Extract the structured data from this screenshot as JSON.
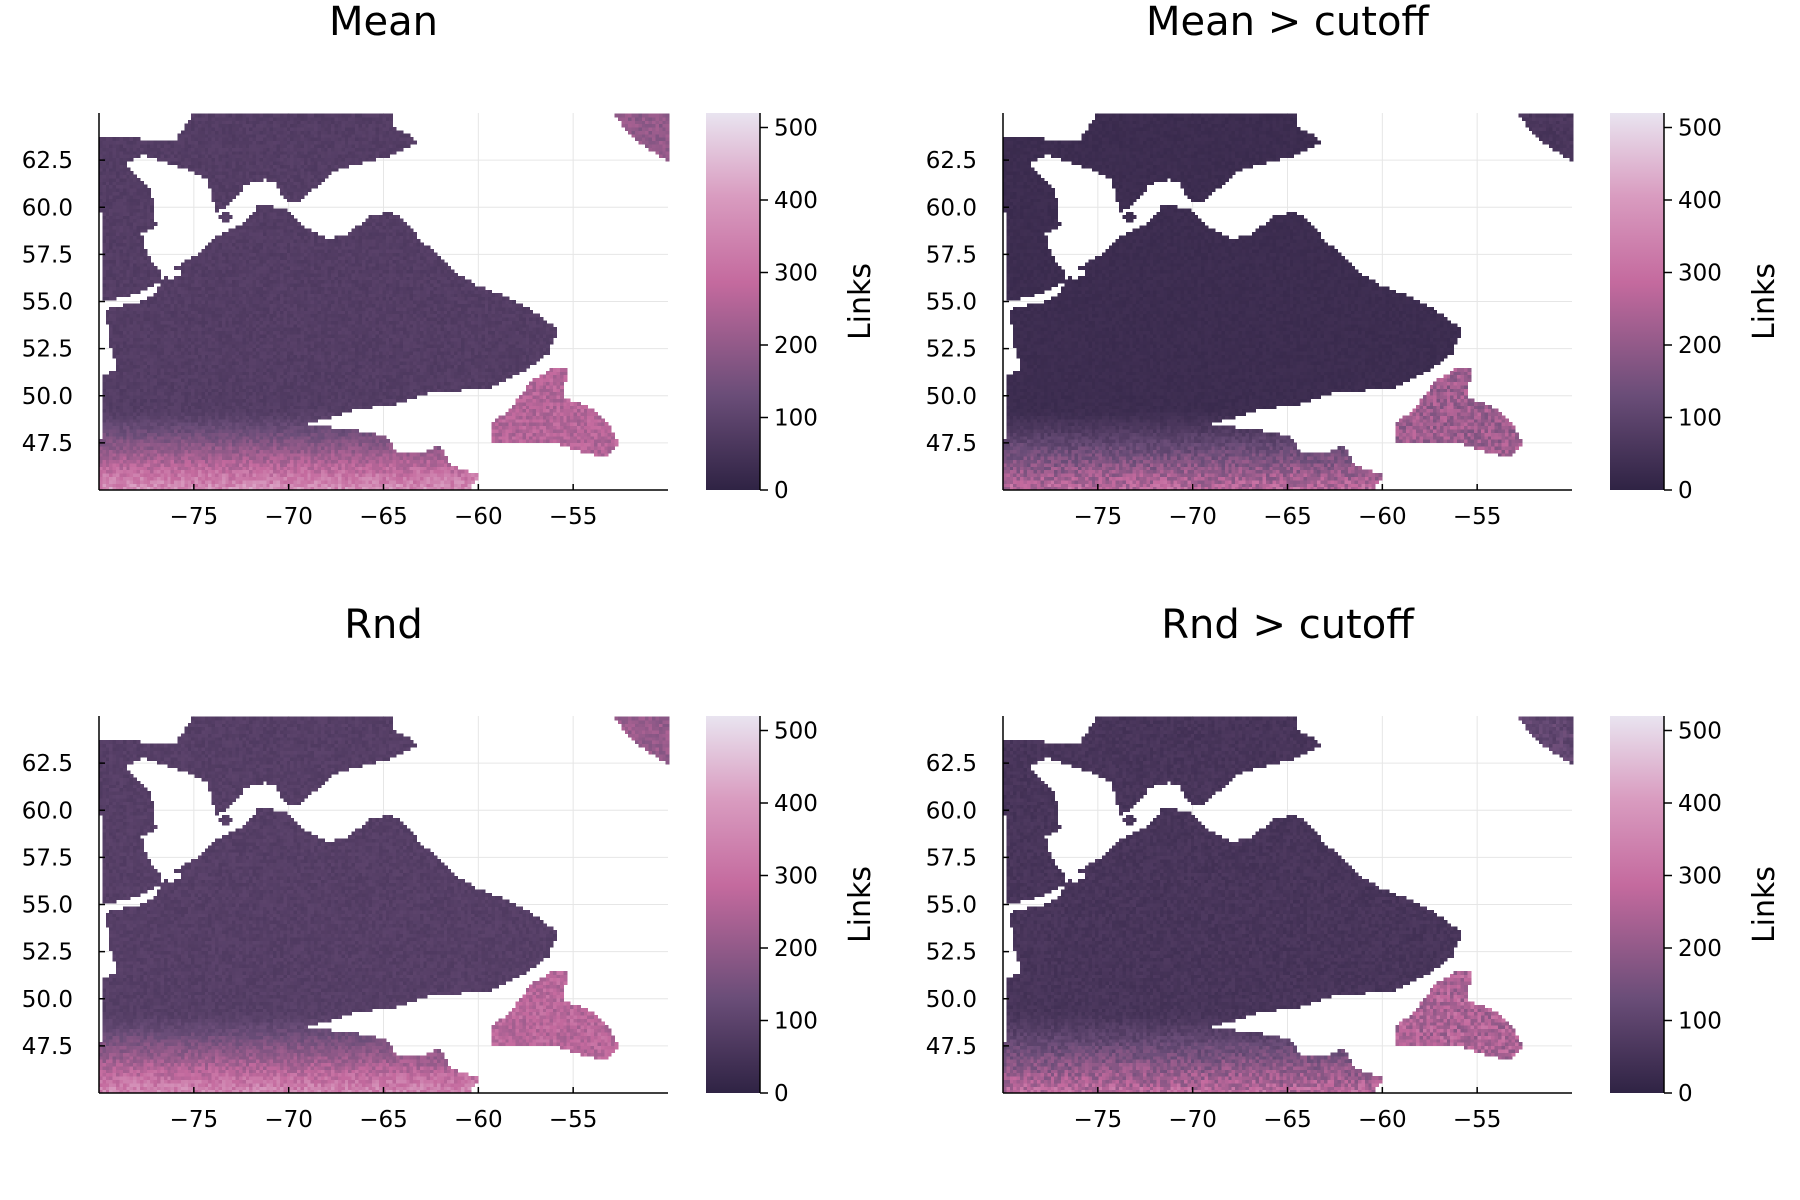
{
  "chart_data": [
    {
      "type": "heatmap",
      "title": "Mean",
      "xlabel": "",
      "ylabel": "",
      "xlim": [
        -80,
        -50
      ],
      "ylim": [
        45,
        65
      ],
      "xticks": [
        "−75",
        "−70",
        "−65",
        "−60",
        "−55"
      ],
      "xtick_values": [
        -75,
        -70,
        -65,
        -60,
        -55
      ],
      "yticks": [
        "47.5",
        "50.0",
        "52.5",
        "55.0",
        "57.5",
        "60.0",
        "62.5"
      ],
      "ytick_values": [
        47.5,
        50.0,
        52.5,
        55.0,
        57.5,
        60.0,
        62.5
      ],
      "colorbar": {
        "label": "Links",
        "range": [
          0,
          520
        ],
        "ticks": [
          "0",
          "100",
          "200",
          "300",
          "400",
          "500"
        ],
        "tick_values": [
          0,
          100,
          200,
          300,
          400,
          500
        ]
      },
      "values_summary": {
        "interior": 80,
        "south_edge": 380,
        "newfoundland": 260,
        "nw_corner": 200
      },
      "grid": true
    },
    {
      "type": "heatmap",
      "title": "Mean > cutoff",
      "xlabel": "",
      "ylabel": "",
      "xlim": [
        -80,
        -50
      ],
      "ylim": [
        45,
        65
      ],
      "xticks": [
        "−75",
        "−70",
        "−65",
        "−60",
        "−55"
      ],
      "xtick_values": [
        -75,
        -70,
        -65,
        -60,
        -55
      ],
      "yticks": [
        "47.5",
        "50.0",
        "52.5",
        "55.0",
        "57.5",
        "60.0",
        "62.5"
      ],
      "ytick_values": [
        47.5,
        50.0,
        52.5,
        55.0,
        57.5,
        60.0,
        62.5
      ],
      "colorbar": {
        "label": "Links",
        "range": [
          0,
          520
        ],
        "ticks": [
          "0",
          "100",
          "200",
          "300",
          "400",
          "500"
        ],
        "tick_values": [
          0,
          100,
          200,
          300,
          400,
          500
        ]
      },
      "values_summary": {
        "interior": 30,
        "south_edge": 280,
        "newfoundland": 220,
        "nw_corner": 60
      },
      "grid": true
    },
    {
      "type": "heatmap",
      "title": "Rnd",
      "xlabel": "",
      "ylabel": "",
      "xlim": [
        -80,
        -50
      ],
      "ylim": [
        45,
        65
      ],
      "xticks": [
        "−75",
        "−70",
        "−65",
        "−60",
        "−55"
      ],
      "xtick_values": [
        -75,
        -70,
        -65,
        -60,
        -55
      ],
      "yticks": [
        "47.5",
        "50.0",
        "52.5",
        "55.0",
        "57.5",
        "60.0",
        "62.5"
      ],
      "ytick_values": [
        47.5,
        50.0,
        52.5,
        55.0,
        57.5,
        60.0,
        62.5
      ],
      "colorbar": {
        "label": "Links",
        "range": [
          0,
          520
        ],
        "ticks": [
          "0",
          "100",
          "200",
          "300",
          "400",
          "500"
        ],
        "tick_values": [
          0,
          100,
          200,
          300,
          400,
          500
        ]
      },
      "values_summary": {
        "interior": 85,
        "south_edge": 360,
        "newfoundland": 270,
        "nw_corner": 210
      },
      "grid": true
    },
    {
      "type": "heatmap",
      "title": "Rnd > cutoff",
      "xlabel": "",
      "ylabel": "",
      "xlim": [
        -80,
        -50
      ],
      "ylim": [
        45,
        65
      ],
      "xticks": [
        "−75",
        "−70",
        "−65",
        "−60",
        "−55"
      ],
      "xtick_values": [
        -75,
        -70,
        -65,
        -60,
        -55
      ],
      "yticks": [
        "47.5",
        "50.0",
        "52.5",
        "55.0",
        "57.5",
        "60.0",
        "62.5"
      ],
      "ytick_values": [
        47.5,
        50.0,
        52.5,
        55.0,
        57.5,
        60.0,
        62.5
      ],
      "colorbar": {
        "label": "Links",
        "range": [
          0,
          520
        ],
        "ticks": [
          "0",
          "100",
          "200",
          "300",
          "400",
          "500"
        ],
        "tick_values": [
          0,
          100,
          200,
          300,
          400,
          500
        ]
      },
      "values_summary": {
        "interior": 55,
        "south_edge": 280,
        "newfoundland": 250,
        "nw_corner": 110
      },
      "grid": true
    }
  ],
  "colors": {
    "colormap": [
      "#2f2344",
      "#6a4d78",
      "#c46a9e",
      "#d99cc0",
      "#e9e4f0"
    ],
    "axis": "#000000",
    "grid": "#e6e6e6",
    "background": "#ffffff"
  }
}
